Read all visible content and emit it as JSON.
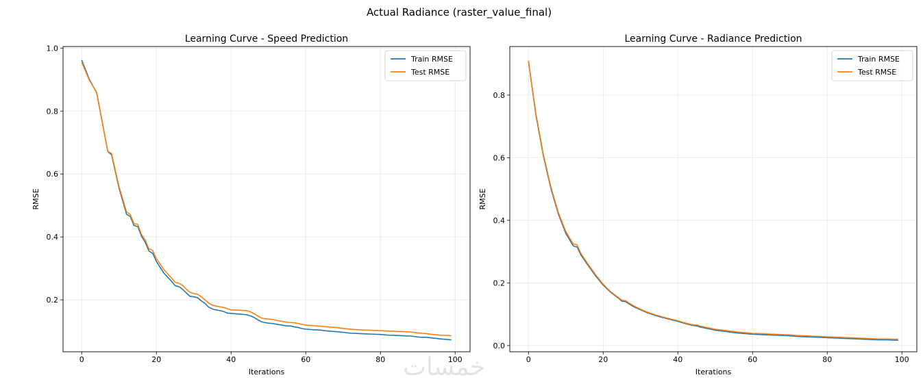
{
  "top_figure": {
    "xlabel": "Actual Radiance (raster_value_final)"
  },
  "watermark": {
    "text": "خمسات"
  },
  "chart_data": [
    {
      "type": "line",
      "title": "Learning Curve - Speed Prediction",
      "xlabel": "Iterations",
      "ylabel": "RMSE",
      "xlim": [
        -5,
        104
      ],
      "ylim": [
        0.035,
        1.005
      ],
      "xticks": [
        0,
        20,
        40,
        60,
        80,
        100
      ],
      "yticks": [
        0.2,
        0.4,
        0.6,
        0.8,
        1.0
      ],
      "ytick_labels": [
        "0.2",
        "0.4",
        "0.6",
        "0.8",
        "1.0"
      ],
      "grid": true,
      "legend_position": "top-right",
      "x": [
        0,
        2,
        4,
        7,
        8,
        10,
        12,
        13,
        14,
        15,
        16,
        17,
        18,
        19,
        20,
        22,
        24,
        25,
        26,
        27,
        28,
        29,
        30,
        31,
        32,
        33,
        34,
        35,
        36,
        37,
        38,
        39,
        40,
        42,
        44,
        45,
        46,
        47,
        48,
        49,
        50,
        51,
        52,
        53,
        54,
        55,
        56,
        57,
        58,
        59,
        60,
        62,
        64,
        65,
        66,
        68,
        70,
        72,
        74,
        76,
        78,
        80,
        82,
        84,
        86,
        88,
        90,
        91,
        92,
        94,
        96,
        98,
        99
      ],
      "series": [
        {
          "name": "Train RMSE",
          "color": "#1f77b4",
          "values": [
            0.962,
            0.902,
            0.858,
            0.671,
            0.661,
            0.555,
            0.472,
            0.465,
            0.436,
            0.433,
            0.402,
            0.383,
            0.355,
            0.348,
            0.322,
            0.285,
            0.26,
            0.245,
            0.242,
            0.234,
            0.222,
            0.211,
            0.21,
            0.207,
            0.197,
            0.189,
            0.177,
            0.171,
            0.168,
            0.166,
            0.163,
            0.158,
            0.157,
            0.155,
            0.153,
            0.15,
            0.145,
            0.138,
            0.131,
            0.128,
            0.126,
            0.125,
            0.123,
            0.121,
            0.119,
            0.117,
            0.117,
            0.114,
            0.112,
            0.109,
            0.107,
            0.105,
            0.104,
            0.102,
            0.101,
            0.099,
            0.097,
            0.094,
            0.093,
            0.092,
            0.091,
            0.09,
            0.088,
            0.087,
            0.086,
            0.085,
            0.082,
            0.081,
            0.081,
            0.079,
            0.076,
            0.074,
            0.073
          ]
        },
        {
          "name": "Test RMSE",
          "color": "#ff7f0e",
          "values": [
            0.955,
            0.899,
            0.86,
            0.672,
            0.665,
            0.56,
            0.48,
            0.471,
            0.442,
            0.44,
            0.408,
            0.391,
            0.362,
            0.357,
            0.331,
            0.296,
            0.27,
            0.256,
            0.253,
            0.246,
            0.234,
            0.224,
            0.22,
            0.218,
            0.21,
            0.2,
            0.19,
            0.183,
            0.18,
            0.178,
            0.176,
            0.172,
            0.168,
            0.167,
            0.166,
            0.163,
            0.157,
            0.15,
            0.143,
            0.14,
            0.139,
            0.138,
            0.135,
            0.133,
            0.131,
            0.129,
            0.128,
            0.127,
            0.125,
            0.122,
            0.12,
            0.118,
            0.116,
            0.115,
            0.114,
            0.112,
            0.109,
            0.107,
            0.105,
            0.104,
            0.103,
            0.102,
            0.101,
            0.1,
            0.099,
            0.098,
            0.095,
            0.094,
            0.093,
            0.09,
            0.088,
            0.087,
            0.086
          ]
        }
      ]
    },
    {
      "type": "line",
      "title": "Learning Curve - Radiance Prediction",
      "xlabel": "Iterations",
      "ylabel": "RMSE",
      "xlim": [
        -5,
        104
      ],
      "ylim": [
        -0.02,
        0.955
      ],
      "xticks": [
        0,
        20,
        40,
        60,
        80,
        100
      ],
      "yticks": [
        0.0,
        0.2,
        0.4,
        0.6,
        0.8
      ],
      "ytick_labels": [
        "0.0",
        "0.2",
        "0.4",
        "0.6",
        "0.8"
      ],
      "grid": true,
      "legend_position": "top-right",
      "x": [
        0,
        2,
        4,
        6,
        8,
        10,
        12,
        13,
        14,
        16,
        18,
        20,
        22,
        24,
        25,
        26,
        28,
        30,
        32,
        34,
        36,
        38,
        40,
        42,
        44,
        45,
        46,
        48,
        50,
        52,
        54,
        56,
        58,
        60,
        62,
        64,
        66,
        68,
        70,
        72,
        74,
        76,
        78,
        80,
        82,
        84,
        86,
        88,
        90,
        92,
        94,
        96,
        98,
        99
      ],
      "series": [
        {
          "name": "Train RMSE",
          "color": "#1f77b4",
          "values": [
            0.908,
            0.735,
            0.605,
            0.502,
            0.42,
            0.358,
            0.318,
            0.315,
            0.29,
            0.255,
            0.222,
            0.193,
            0.17,
            0.152,
            0.142,
            0.14,
            0.125,
            0.114,
            0.104,
            0.096,
            0.089,
            0.083,
            0.077,
            0.07,
            0.064,
            0.063,
            0.059,
            0.054,
            0.049,
            0.046,
            0.043,
            0.04,
            0.038,
            0.036,
            0.035,
            0.034,
            0.033,
            0.032,
            0.031,
            0.029,
            0.028,
            0.027,
            0.026,
            0.025,
            0.024,
            0.023,
            0.022,
            0.021,
            0.02,
            0.019,
            0.018,
            0.018,
            0.017,
            0.017
          ]
        },
        {
          "name": "Test RMSE",
          "color": "#ff7f0e",
          "values": [
            0.91,
            0.74,
            0.61,
            0.507,
            0.425,
            0.364,
            0.324,
            0.322,
            0.295,
            0.259,
            0.226,
            0.196,
            0.172,
            0.154,
            0.145,
            0.143,
            0.128,
            0.116,
            0.106,
            0.098,
            0.091,
            0.085,
            0.079,
            0.072,
            0.066,
            0.066,
            0.062,
            0.057,
            0.052,
            0.049,
            0.046,
            0.043,
            0.041,
            0.039,
            0.038,
            0.037,
            0.036,
            0.035,
            0.034,
            0.032,
            0.031,
            0.03,
            0.029,
            0.028,
            0.027,
            0.026,
            0.025,
            0.024,
            0.023,
            0.022,
            0.021,
            0.021,
            0.02,
            0.02
          ]
        }
      ]
    }
  ]
}
